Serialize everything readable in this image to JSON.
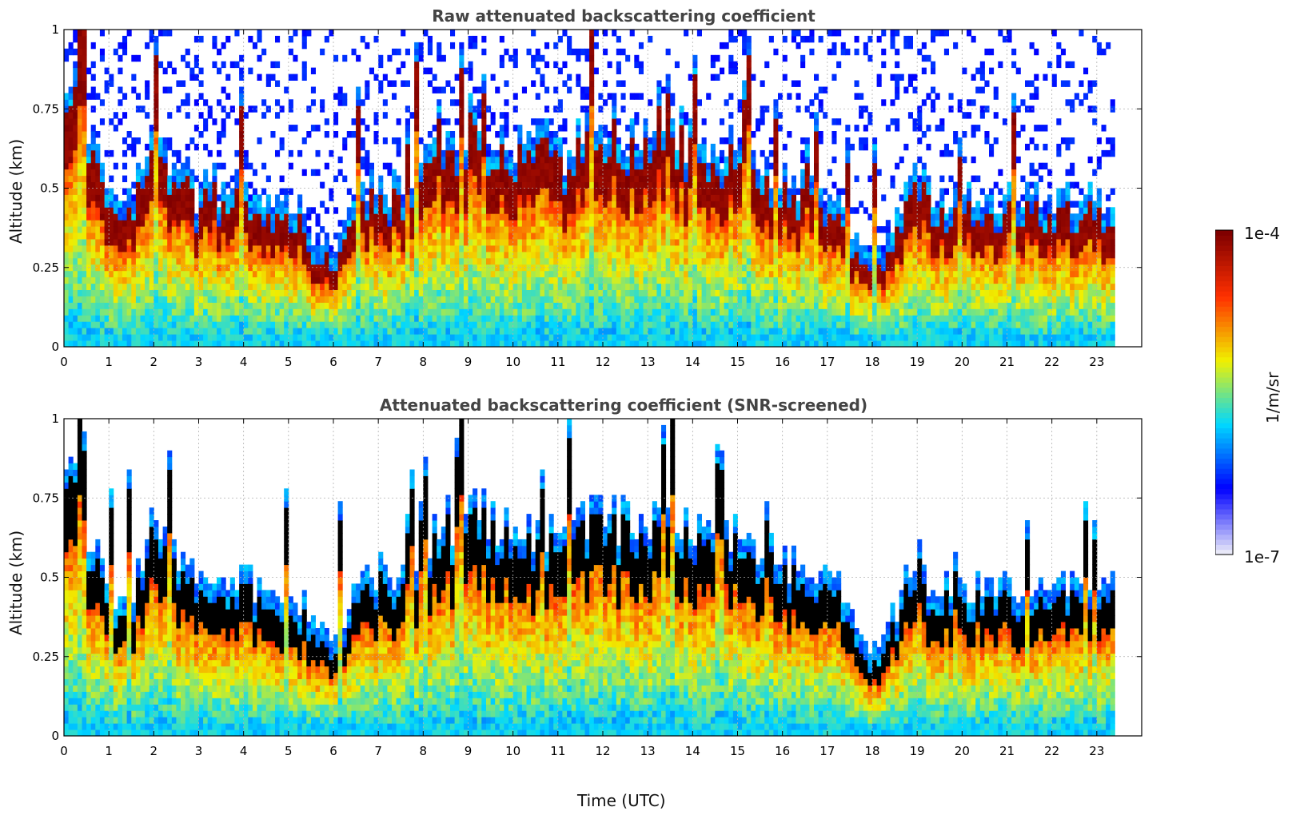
{
  "chart_data": [
    {
      "type": "heatmap",
      "title": "Raw attenuated backscattering coefficient",
      "xlabel": "",
      "ylabel": "Altitude (km)",
      "xlim": [
        0,
        24
      ],
      "ylim": [
        0,
        1
      ],
      "xticks": [
        "0",
        "1",
        "2",
        "3",
        "4",
        "5",
        "6",
        "7",
        "8",
        "9",
        "10",
        "11",
        "12",
        "13",
        "14",
        "15",
        "16",
        "17",
        "18",
        "19",
        "20",
        "21",
        "22",
        "23"
      ],
      "yticks": [
        "0",
        "0.25",
        "0.5",
        "0.75",
        "1"
      ],
      "grid": true,
      "data_end_time": 23.35,
      "layer_profile": {
        "time": [
          0.0,
          0.3,
          0.5,
          1.0,
          1.5,
          2.0,
          3.0,
          4.0,
          4.5,
          5.0,
          5.5,
          6.0,
          6.5,
          7.0,
          7.5,
          8.0,
          9.0,
          10.0,
          11.0,
          12.0,
          13.0,
          14.0,
          15.0,
          16.0,
          17.0,
          18.0,
          19.0,
          19.3
        ],
        "top_km": [
          0.7,
          0.95,
          0.6,
          0.38,
          0.4,
          0.6,
          0.4,
          0.42,
          0.4,
          0.36,
          0.28,
          0.25,
          0.42,
          0.45,
          0.42,
          0.55,
          0.65,
          0.6,
          0.55,
          0.62,
          0.6,
          0.58,
          0.55,
          0.48,
          0.4,
          0.2,
          0.5,
          0.4
        ]
      }
    },
    {
      "type": "heatmap",
      "title": "Attenuated backscattering coefficient (SNR-screened)",
      "xlabel": "Time (UTC)",
      "ylabel": "Altitude (km)",
      "xlim": [
        0,
        24
      ],
      "ylim": [
        0,
        1
      ],
      "xticks": [
        "0",
        "1",
        "2",
        "3",
        "4",
        "5",
        "6",
        "7",
        "8",
        "9",
        "10",
        "11",
        "12",
        "13",
        "14",
        "15",
        "16",
        "17",
        "18",
        "19",
        "20",
        "21",
        "22",
        "23"
      ],
      "yticks": [
        "0",
        "0.25",
        "0.5",
        "0.75",
        "1"
      ],
      "grid": true,
      "data_end_time": 23.35,
      "saturated_color": "#000000"
    }
  ],
  "colorbar": {
    "label": "1/m/sr",
    "min_label": "1e-7",
    "max_label": "1e-4",
    "colormap": "jet",
    "colors": [
      "#e8e8f8",
      "#0000ff",
      "#00d8ff",
      "#f0f000",
      "#ff3000",
      "#800000"
    ]
  }
}
